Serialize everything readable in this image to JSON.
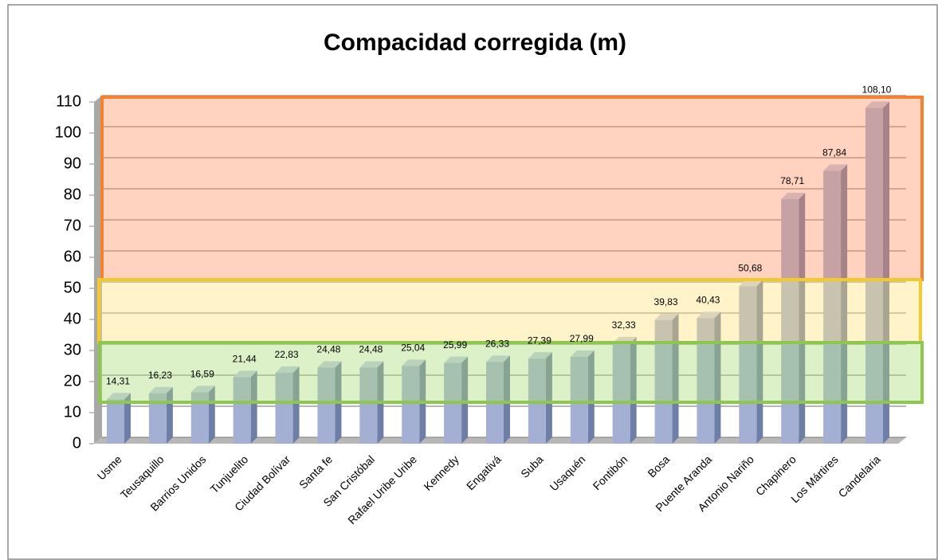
{
  "chart_data": {
    "type": "bar",
    "title": "Compacidad corregida (m)",
    "categories": [
      "Usme",
      "Teusaquillo",
      "Barrios Unidos",
      "Tunjuelito",
      "Ciudad Bolívar",
      "Santa fe",
      "San Cristóbal",
      "Rafael Uribe Uribe",
      "Kennedy",
      "Engativá",
      "Suba",
      "Usaquén",
      "Fontibón",
      "Bosa",
      "Puente Aranda",
      "Antonio Nariño",
      "Chapinero",
      "Los Mártires",
      "Candelaria"
    ],
    "values": [
      14.31,
      16.23,
      16.59,
      21.44,
      22.83,
      24.48,
      24.48,
      25.04,
      25.99,
      26.33,
      27.39,
      27.99,
      32.33,
      39.83,
      40.43,
      50.68,
      78.71,
      87.84,
      108.1
    ],
    "value_labels": [
      "14,31",
      "16,23",
      "16,59",
      "21,44",
      "22,83",
      "24,48",
      "24,48",
      "25,04",
      "25,99",
      "26,33",
      "27,39",
      "27,99",
      "32,33",
      "39,83",
      "40,43",
      "50,68",
      "78,71",
      "87,84",
      "108,10"
    ],
    "color": "#a3b0d4",
    "ylim": [
      0,
      110
    ],
    "yticks": [
      0,
      10,
      20,
      30,
      40,
      50,
      60,
      70,
      80,
      90,
      100,
      110
    ],
    "grid": true
  }
}
